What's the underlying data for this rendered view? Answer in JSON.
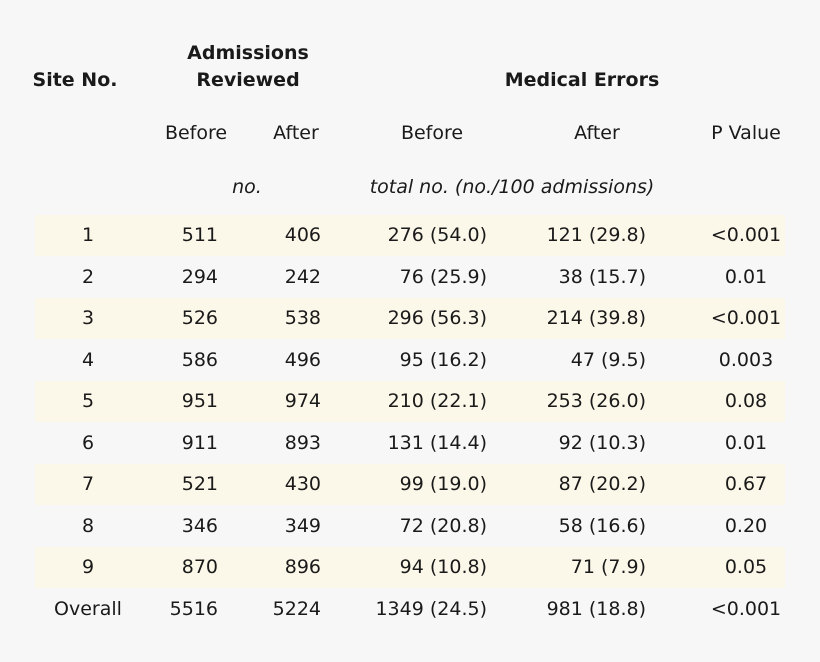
{
  "table": {
    "header": {
      "site": "Site No.",
      "admissions": [
        "Admissions",
        "Reviewed"
      ],
      "errors": "Medical Errors",
      "subcolumns": [
        "Before",
        "After",
        "Before",
        "After",
        "P Value"
      ],
      "units": [
        "no.",
        "total no. (no./100 admissions)"
      ]
    },
    "rows": [
      [
        "1",
        "511",
        "406",
        "276 (54.0)",
        "121 (29.8)",
        "<0.001"
      ],
      [
        "2",
        "294",
        "242",
        "76 (25.9)",
        "38 (15.7)",
        "0.01"
      ],
      [
        "3",
        "526",
        "538",
        "296 (56.3)",
        "214 (39.8)",
        "<0.001"
      ],
      [
        "4",
        "586",
        "496",
        "95 (16.2)",
        "47 (9.5)",
        "0.003"
      ],
      [
        "5",
        "951",
        "974",
        "210 (22.1)",
        "253 (26.0)",
        "0.08"
      ],
      [
        "6",
        "911",
        "893",
        "131 (14.4)",
        "92 (10.3)",
        "0.01"
      ],
      [
        "7",
        "521",
        "430",
        "99 (19.0)",
        "87 (20.2)",
        "0.67"
      ],
      [
        "8",
        "346",
        "349",
        "72 (20.8)",
        "58 (16.6)",
        "0.20"
      ],
      [
        "9",
        "870",
        "896",
        "94 (10.8)",
        "71 (7.9)",
        "0.05"
      ],
      [
        "Overall",
        "5516",
        "5224",
        "1349 (24.5)",
        "981 (18.8)",
        "<0.001"
      ]
    ]
  }
}
